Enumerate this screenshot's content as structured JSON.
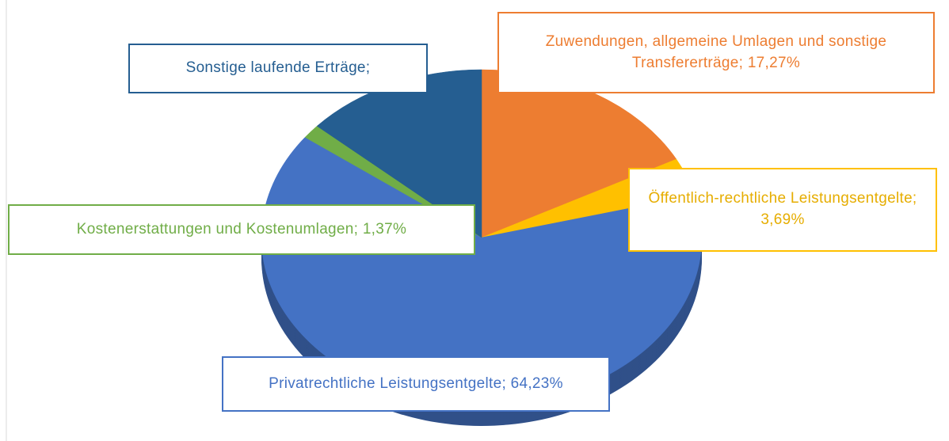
{
  "chart_data": {
    "type": "pie",
    "categories": [
      "Zuwendungen,  allgemeine Umlagen und sonstige Transfererträge; 17,27%",
      "Öffentlich-rechtliche Leistungsentgelte;  3,69%",
      "Privatrechtliche Leistungsentgelte; 64,23%",
      "Kostenerstattungen und Kostenumlagen; 1,37%",
      "Sonstige laufende Erträge;"
    ],
    "values": [
      17.27,
      3.69,
      64.23,
      1.37,
      13.44
    ],
    "colors": [
      "#ed7d31",
      "#ffc000",
      "#4472c4",
      "#70ad47",
      "#255e91"
    ]
  }
}
